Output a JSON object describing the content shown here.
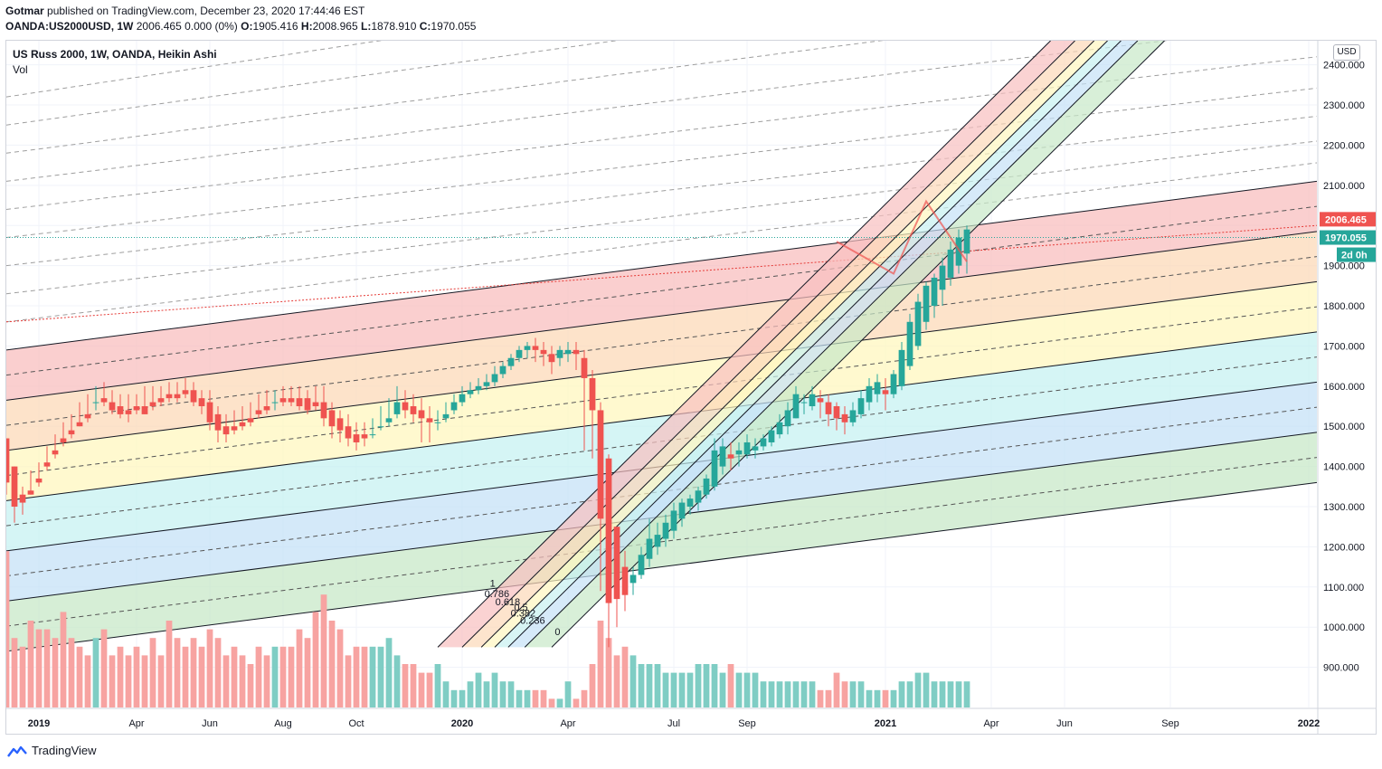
{
  "header": {
    "publisher": "Gotmar",
    "published_text": "published on TradingView.com, December 23, 2020 17:44:46 EST",
    "symbol": "OANDA:US2000USD, 1W",
    "quote": "2006.465 0.000 (0%)",
    "open_label": "O:",
    "open": "1905.416",
    "high_label": "H:",
    "high": "2008.965",
    "low_label": "L:",
    "low": "1878.910",
    "close_label": "C:",
    "close": "1970.055"
  },
  "legend": {
    "title": "US Russ 2000, 1W, OANDA, Heikin Ashi",
    "vol": "Vol"
  },
  "price_scale": {
    "currency": "USD"
  },
  "price_labels": {
    "last": "2006.465",
    "close": "1970.055",
    "countdown": "2d 0h"
  },
  "footer": {
    "brand": "TradingView",
    "logo_icon": "tradingview-logo-icon"
  },
  "colors": {
    "up": "#26a69a",
    "down": "#ef5350",
    "vol_up": "#7fcdc4",
    "vol_down": "#f7a3a1",
    "band_red": "#f8bfbf",
    "band_orange": "#fcd9b8",
    "band_yellow": "#fff7bf",
    "band_cyan": "#c7f1f1",
    "band_blue": "#c5e1f7",
    "band_green": "#c8e8c8"
  },
  "chart_data": {
    "type": "candlestick",
    "series_type": "Heikin Ashi",
    "y_axis": {
      "ticks": [
        900,
        1000,
        1100,
        1200,
        1300,
        1400,
        1500,
        1600,
        1700,
        1800,
        1900,
        2000,
        2100,
        2200,
        2300,
        2400
      ],
      "tick_labels": [
        "900.000",
        "1000.000",
        "1100.000",
        "1200.000",
        "1300.000",
        "1400.000",
        "1500.000",
        "1600.000",
        "1700.000",
        "1800.000",
        "1900.000",
        "",
        "2100.000",
        "2200.000",
        "2300.000",
        "2400.000"
      ],
      "ylim": [
        800,
        2460
      ]
    },
    "x_axis": {
      "start": "2018-12-10",
      "end": "2022-01-10",
      "labels": [
        {
          "text": "2019",
          "date": "2019-01-07",
          "bold": true
        },
        {
          "text": "Apr",
          "date": "2019-04-01"
        },
        {
          "text": "Jun",
          "date": "2019-06-03"
        },
        {
          "text": "Aug",
          "date": "2019-08-05"
        },
        {
          "text": "Oct",
          "date": "2019-10-07"
        },
        {
          "text": "2020",
          "date": "2020-01-06",
          "bold": true
        },
        {
          "text": "Apr",
          "date": "2020-04-06"
        },
        {
          "text": "Jul",
          "date": "2020-07-06"
        },
        {
          "text": "Sep",
          "date": "2020-09-07"
        },
        {
          "text": "2021",
          "date": "2021-01-04",
          "bold": true
        },
        {
          "text": "Apr",
          "date": "2021-04-05"
        },
        {
          "text": "Jun",
          "date": "2021-06-07"
        },
        {
          "text": "Sep",
          "date": "2021-09-06"
        },
        {
          "text": "2022",
          "date": "2022-01-03",
          "bold": true
        }
      ]
    },
    "candles_start": "2018-12-10",
    "candles_interval_days": 7,
    "candles": [
      [
        1470,
        1470,
        1360,
        1330
      ],
      [
        1400,
        1400,
        1300,
        1260
      ],
      [
        1330,
        1350,
        1310,
        1280
      ],
      [
        1340,
        1390,
        1330,
        1330
      ],
      [
        1370,
        1410,
        1360,
        1350
      ],
      [
        1410,
        1450,
        1400,
        1390
      ],
      [
        1440,
        1480,
        1430,
        1420
      ],
      [
        1470,
        1510,
        1460,
        1450
      ],
      [
        1490,
        1530,
        1480,
        1470
      ],
      [
        1510,
        1560,
        1500,
        1500
      ],
      [
        1530,
        1580,
        1520,
        1510
      ],
      [
        1560,
        1600,
        1560,
        1540
      ],
      [
        1570,
        1610,
        1560,
        1550
      ],
      [
        1560,
        1590,
        1540,
        1530
      ],
      [
        1550,
        1580,
        1530,
        1520
      ],
      [
        1540,
        1580,
        1530,
        1510
      ],
      [
        1550,
        1580,
        1540,
        1530
      ],
      [
        1550,
        1600,
        1530,
        1530
      ],
      [
        1560,
        1600,
        1550,
        1540
      ],
      [
        1570,
        1600,
        1560,
        1550
      ],
      [
        1580,
        1610,
        1570,
        1560
      ],
      [
        1580,
        1610,
        1570,
        1560
      ],
      [
        1590,
        1620,
        1580,
        1570
      ],
      [
        1590,
        1610,
        1560,
        1550
      ],
      [
        1570,
        1590,
        1550,
        1530
      ],
      [
        1560,
        1590,
        1510,
        1490
      ],
      [
        1530,
        1550,
        1490,
        1460
      ],
      [
        1500,
        1530,
        1480,
        1460
      ],
      [
        1500,
        1540,
        1490,
        1480
      ],
      [
        1510,
        1550,
        1500,
        1490
      ],
      [
        1520,
        1560,
        1510,
        1500
      ],
      [
        1540,
        1580,
        1530,
        1520
      ],
      [
        1550,
        1590,
        1540,
        1530
      ],
      [
        1560,
        1590,
        1560,
        1540
      ],
      [
        1570,
        1600,
        1560,
        1550
      ],
      [
        1570,
        1600,
        1560,
        1550
      ],
      [
        1570,
        1600,
        1550,
        1540
      ],
      [
        1570,
        1590,
        1540,
        1530
      ],
      [
        1560,
        1600,
        1550,
        1540
      ],
      [
        1560,
        1600,
        1520,
        1500
      ],
      [
        1540,
        1560,
        1500,
        1470
      ],
      [
        1520,
        1540,
        1490,
        1460
      ],
      [
        1500,
        1530,
        1470,
        1450
      ],
      [
        1480,
        1510,
        1460,
        1440
      ],
      [
        1480,
        1510,
        1470,
        1450
      ],
      [
        1480,
        1520,
        1480,
        1470
      ],
      [
        1500,
        1550,
        1500,
        1490
      ],
      [
        1510,
        1570,
        1520,
        1500
      ],
      [
        1530,
        1600,
        1560,
        1520
      ],
      [
        1560,
        1590,
        1540,
        1520
      ],
      [
        1550,
        1580,
        1530,
        1510
      ],
      [
        1540,
        1570,
        1520,
        1460
      ],
      [
        1520,
        1550,
        1510,
        1460
      ],
      [
        1510,
        1540,
        1510,
        1490
      ],
      [
        1520,
        1560,
        1530,
        1510
      ],
      [
        1540,
        1580,
        1560,
        1530
      ],
      [
        1560,
        1600,
        1580,
        1550
      ],
      [
        1580,
        1610,
        1590,
        1570
      ],
      [
        1590,
        1620,
        1600,
        1580
      ],
      [
        1600,
        1630,
        1610,
        1590
      ],
      [
        1610,
        1650,
        1630,
        1600
      ],
      [
        1630,
        1660,
        1650,
        1620
      ],
      [
        1650,
        1680,
        1670,
        1640
      ],
      [
        1670,
        1700,
        1690,
        1660
      ],
      [
        1690,
        1710,
        1700,
        1670
      ],
      [
        1700,
        1720,
        1690,
        1660
      ],
      [
        1690,
        1710,
        1680,
        1650
      ],
      [
        1680,
        1700,
        1660,
        1630
      ],
      [
        1670,
        1700,
        1690,
        1650
      ],
      [
        1680,
        1710,
        1690,
        1660
      ],
      [
        1690,
        1710,
        1680,
        1640
      ],
      [
        1670,
        1690,
        1620,
        1440
      ],
      [
        1620,
        1640,
        1540,
        1420
      ],
      [
        1540,
        1560,
        1270,
        1090
      ],
      [
        1420,
        1430,
        1060,
        950
      ],
      [
        1250,
        1250,
        1070,
        1000
      ],
      [
        1150,
        1190,
        1080,
        1040
      ],
      [
        1110,
        1150,
        1130,
        1080
      ],
      [
        1130,
        1200,
        1180,
        1120
      ],
      [
        1170,
        1270,
        1220,
        1150
      ],
      [
        1200,
        1260,
        1230,
        1180
      ],
      [
        1220,
        1280,
        1260,
        1200
      ],
      [
        1240,
        1310,
        1290,
        1220
      ],
      [
        1270,
        1320,
        1310,
        1250
      ],
      [
        1300,
        1330,
        1320,
        1280
      ],
      [
        1310,
        1350,
        1340,
        1290
      ],
      [
        1330,
        1380,
        1370,
        1320
      ],
      [
        1350,
        1470,
        1440,
        1340
      ],
      [
        1400,
        1470,
        1450,
        1380
      ],
      [
        1430,
        1460,
        1420,
        1390
      ],
      [
        1430,
        1460,
        1440,
        1400
      ],
      [
        1430,
        1480,
        1460,
        1420
      ],
      [
        1440,
        1470,
        1450,
        1420
      ],
      [
        1450,
        1480,
        1470,
        1440
      ],
      [
        1460,
        1500,
        1490,
        1450
      ],
      [
        1480,
        1530,
        1510,
        1470
      ],
      [
        1500,
        1560,
        1540,
        1480
      ],
      [
        1520,
        1600,
        1580,
        1520
      ],
      [
        1560,
        1580,
        1560,
        1530
      ],
      [
        1550,
        1600,
        1580,
        1540
      ],
      [
        1570,
        1590,
        1560,
        1520
      ],
      [
        1560,
        1580,
        1530,
        1500
      ],
      [
        1550,
        1560,
        1520,
        1490
      ],
      [
        1530,
        1550,
        1510,
        1480
      ],
      [
        1510,
        1560,
        1540,
        1500
      ],
      [
        1530,
        1590,
        1570,
        1520
      ],
      [
        1560,
        1620,
        1600,
        1540
      ],
      [
        1580,
        1630,
        1610,
        1560
      ],
      [
        1590,
        1620,
        1580,
        1540
      ],
      [
        1580,
        1640,
        1630,
        1570
      ],
      [
        1600,
        1710,
        1690,
        1590
      ],
      [
        1650,
        1780,
        1760,
        1640
      ],
      [
        1700,
        1830,
        1810,
        1690
      ],
      [
        1760,
        1860,
        1850,
        1740
      ],
      [
        1800,
        1880,
        1870,
        1770
      ],
      [
        1840,
        1920,
        1900,
        1800
      ],
      [
        1870,
        1960,
        1940,
        1850
      ],
      [
        1900,
        1990,
        1970,
        1880
      ],
      [
        1930,
        2000,
        1990,
        1880
      ]
    ],
    "volume": [
      18,
      8,
      7,
      10,
      9,
      9,
      8,
      11,
      8,
      7,
      6,
      8,
      9,
      6,
      7,
      6,
      7,
      6,
      8,
      6,
      10,
      8,
      7,
      8,
      7,
      9,
      8,
      6,
      7,
      6,
      5,
      7,
      6,
      7,
      7,
      7,
      9,
      8,
      11,
      13,
      10,
      9,
      6,
      7,
      7,
      7,
      7,
      8,
      6,
      5,
      5,
      4,
      4,
      5,
      3,
      2,
      2,
      3,
      4,
      3,
      4,
      3,
      3,
      2,
      2,
      2,
      2,
      1,
      1,
      3,
      1,
      2,
      5,
      10,
      8,
      6,
      7,
      6,
      5,
      5,
      5,
      4,
      4,
      4,
      4,
      5,
      5,
      5,
      4,
      5,
      4,
      4,
      4,
      3,
      3,
      3,
      3,
      3,
      3,
      3,
      2,
      2,
      4,
      3,
      3,
      3,
      2,
      2,
      2,
      2,
      3,
      3,
      4,
      4,
      3,
      3,
      3,
      3,
      3,
      3,
      2
    ],
    "volume_ylim": [
      0,
      20
    ],
    "overlays": {
      "parallel_channel": {
        "upper_start": [
          "2018-12-10",
          1690
        ],
        "upper_end": [
          "2022-01-10",
          2110
        ],
        "band_spacing": 125
      },
      "fib_channel": {
        "start": [
          "2020-03-23",
          950
        ],
        "end": [
          "2021-09-01",
          2460
        ],
        "levels": [
          {
            "label": "0",
            "value": 0
          },
          {
            "label": "0.236",
            "value": 0.236
          },
          {
            "label": "0.382",
            "value": 0.382
          },
          {
            "label": "0.5",
            "value": 0.5
          },
          {
            "label": "0.618",
            "value": 0.618
          },
          {
            "label": "0.786",
            "value": 0.786
          },
          {
            "label": "1",
            "value": 1
          }
        ]
      },
      "projection_arrow": {
        "points": [
          [
            "2020-11-23",
            1960
          ],
          [
            "2021-01-11",
            1880
          ],
          [
            "2021-02-08",
            2060
          ],
          [
            "2021-03-15",
            1910
          ]
        ]
      }
    }
  }
}
